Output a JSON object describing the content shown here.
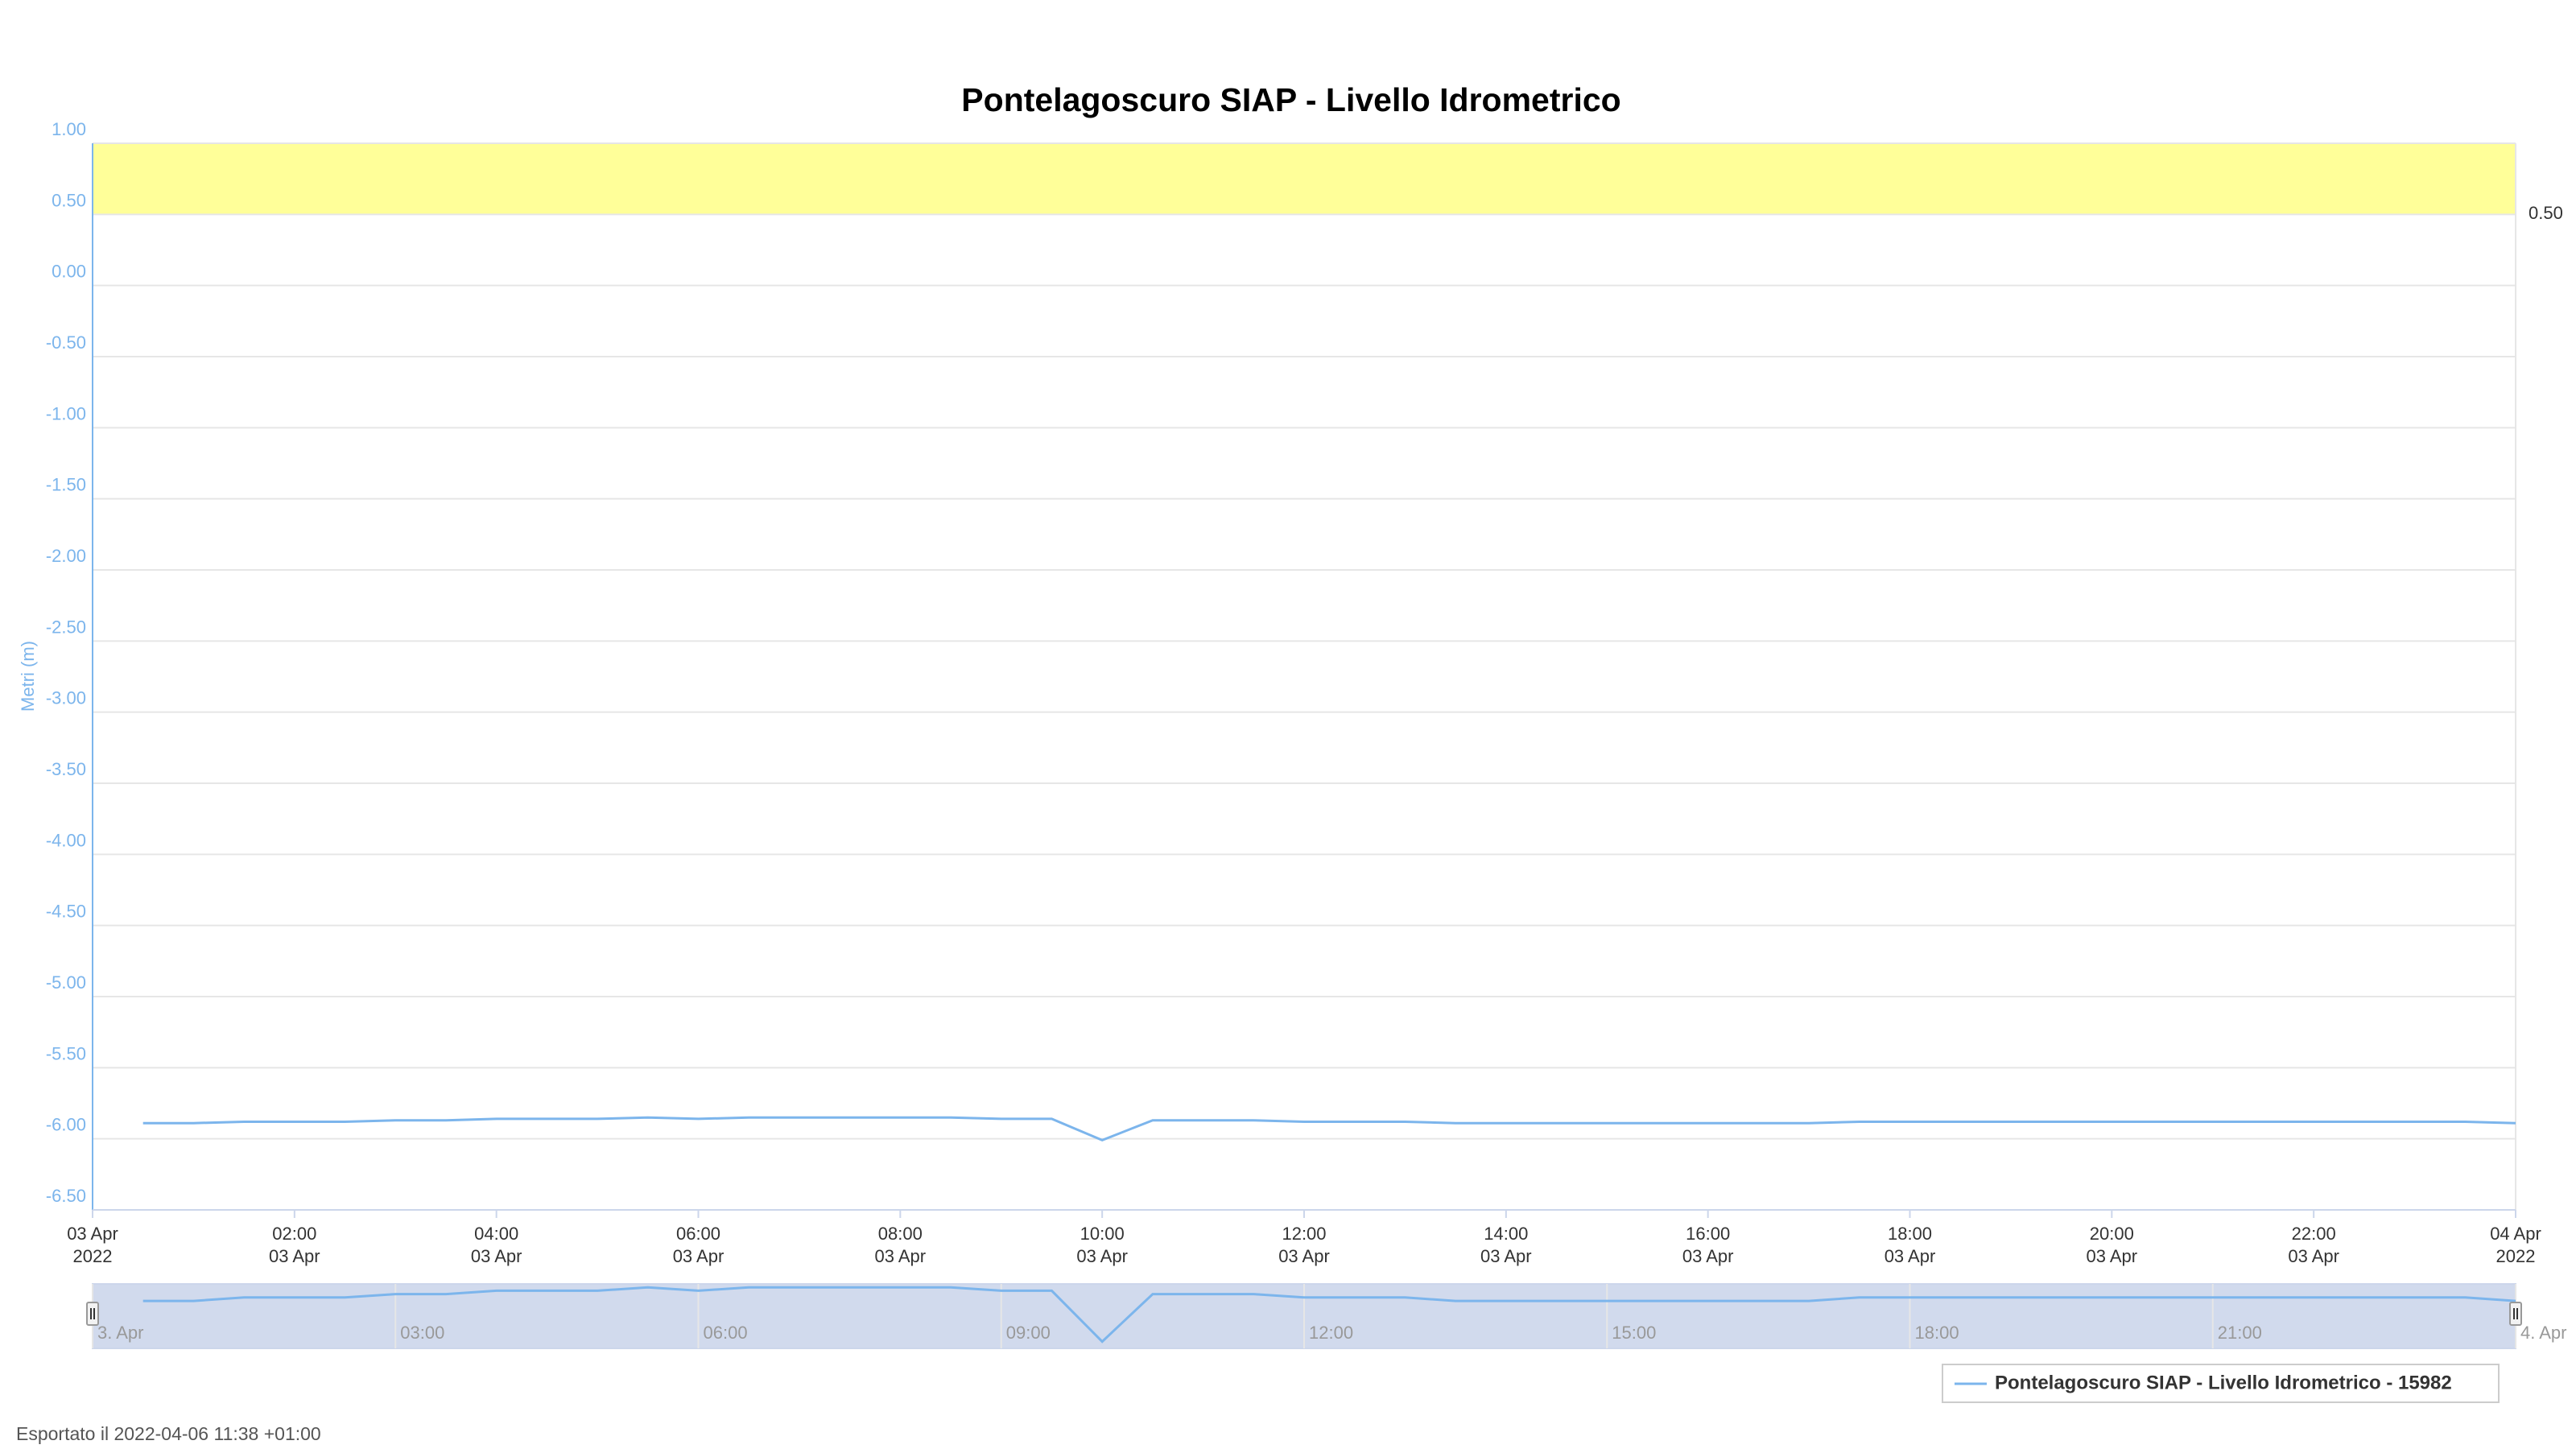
{
  "chart_data": {
    "type": "line",
    "title": "Pontelagoscuro SIAP - Livello Idrometrico",
    "y_label": "Metri (m)",
    "x": [
      "2022-04-03T00:30",
      "2022-04-03T01:00",
      "2022-04-03T01:30",
      "2022-04-03T02:00",
      "2022-04-03T02:30",
      "2022-04-03T03:00",
      "2022-04-03T03:30",
      "2022-04-03T04:00",
      "2022-04-03T04:30",
      "2022-04-03T05:00",
      "2022-04-03T05:30",
      "2022-04-03T06:00",
      "2022-04-03T06:30",
      "2022-04-03T07:00",
      "2022-04-03T07:30",
      "2022-04-03T08:00",
      "2022-04-03T08:30",
      "2022-04-03T09:00",
      "2022-04-03T09:30",
      "2022-04-03T10:00",
      "2022-04-03T10:30",
      "2022-04-03T11:00",
      "2022-04-03T11:30",
      "2022-04-03T12:00",
      "2022-04-03T12:30",
      "2022-04-03T13:00",
      "2022-04-03T13:30",
      "2022-04-03T14:00",
      "2022-04-03T14:30",
      "2022-04-03T15:00",
      "2022-04-03T15:30",
      "2022-04-03T16:00",
      "2022-04-03T16:30",
      "2022-04-03T17:00",
      "2022-04-03T17:30",
      "2022-04-03T18:00",
      "2022-04-03T18:30",
      "2022-04-03T19:00",
      "2022-04-03T19:30",
      "2022-04-03T20:00",
      "2022-04-03T20:30",
      "2022-04-03T21:00",
      "2022-04-03T21:30",
      "2022-04-03T22:00",
      "2022-04-03T22:30",
      "2022-04-03T23:00",
      "2022-04-03T23:30",
      "2022-04-04T00:00"
    ],
    "series": [
      {
        "name": "Pontelagoscuro SIAP - Livello Idrometrico - 15982",
        "color": "#7cb5ec",
        "values": [
          -5.89,
          -5.89,
          -5.88,
          -5.88,
          -5.88,
          -5.87,
          -5.87,
          -5.86,
          -5.86,
          -5.86,
          -5.85,
          -5.86,
          -5.85,
          -5.85,
          -5.85,
          -5.85,
          -5.85,
          -5.86,
          -5.86,
          -6.01,
          -5.87,
          -5.87,
          -5.87,
          -5.88,
          -5.88,
          -5.88,
          -5.89,
          -5.89,
          -5.89,
          -5.89,
          -5.89,
          -5.89,
          -5.89,
          -5.89,
          -5.88,
          -5.88,
          -5.88,
          -5.88,
          -5.88,
          -5.88,
          -5.88,
          -5.88,
          -5.88,
          -5.88,
          -5.88,
          -5.88,
          -5.88,
          -5.89
        ]
      }
    ],
    "xlim": [
      "2022-04-03T00:00",
      "2022-04-04T00:00"
    ],
    "xticks": [
      {
        "value": "2022-04-03T00:00",
        "label": [
          "03 Apr",
          "2022"
        ]
      },
      {
        "value": "2022-04-03T02:00",
        "label": [
          "02:00",
          "03 Apr"
        ]
      },
      {
        "value": "2022-04-03T04:00",
        "label": [
          "04:00",
          "03 Apr"
        ]
      },
      {
        "value": "2022-04-03T06:00",
        "label": [
          "06:00",
          "03 Apr"
        ]
      },
      {
        "value": "2022-04-03T08:00",
        "label": [
          "08:00",
          "03 Apr"
        ]
      },
      {
        "value": "2022-04-03T10:00",
        "label": [
          "10:00",
          "03 Apr"
        ]
      },
      {
        "value": "2022-04-03T12:00",
        "label": [
          "12:00",
          "03 Apr"
        ]
      },
      {
        "value": "2022-04-03T14:00",
        "label": [
          "14:00",
          "03 Apr"
        ]
      },
      {
        "value": "2022-04-03T16:00",
        "label": [
          "16:00",
          "03 Apr"
        ]
      },
      {
        "value": "2022-04-03T18:00",
        "label": [
          "18:00",
          "03 Apr"
        ]
      },
      {
        "value": "2022-04-03T20:00",
        "label": [
          "20:00",
          "03 Apr"
        ]
      },
      {
        "value": "2022-04-03T22:00",
        "label": [
          "22:00",
          "03 Apr"
        ]
      },
      {
        "value": "2022-04-04T00:00",
        "label": [
          "04 Apr",
          "2022"
        ]
      }
    ],
    "ylim": [
      -6.5,
      1.0
    ],
    "yticks": [
      {
        "value": 1.0,
        "label": "1.00"
      },
      {
        "value": 0.5,
        "label": "0.50"
      },
      {
        "value": 0,
        "label": "0.00"
      },
      {
        "value": -0.5,
        "label": "-0.50"
      },
      {
        "value": -1.0,
        "label": "-1.00"
      },
      {
        "value": -1.5,
        "label": "-1.50"
      },
      {
        "value": -2.0,
        "label": "-2.00"
      },
      {
        "value": -2.5,
        "label": "-2.50"
      },
      {
        "value": -3.0,
        "label": "-3.00"
      },
      {
        "value": -3.5,
        "label": "-3.50"
      },
      {
        "value": -4.0,
        "label": "-4.00"
      },
      {
        "value": -4.5,
        "label": "-4.50"
      },
      {
        "value": -5.0,
        "label": "-5.00"
      },
      {
        "value": -5.5,
        "label": "-5.50"
      },
      {
        "value": -6.0,
        "label": "-6.00"
      },
      {
        "value": -6.5,
        "label": "-6.50"
      }
    ],
    "grid": true,
    "plot_bands": [
      {
        "from": 0.5,
        "to": 1.0,
        "color": "#ffff99",
        "label": "0.50"
      }
    ],
    "navigator": {
      "ylim": [
        -6.03,
        -5.84
      ],
      "xticks": [
        {
          "value": "2022-04-03T00:00",
          "label": "3. Apr"
        },
        {
          "value": "2022-04-03T03:00",
          "label": "03:00"
        },
        {
          "value": "2022-04-03T06:00",
          "label": "06:00"
        },
        {
          "value": "2022-04-03T09:00",
          "label": "09:00"
        },
        {
          "value": "2022-04-03T12:00",
          "label": "12:00"
        },
        {
          "value": "2022-04-03T15:00",
          "label": "15:00"
        },
        {
          "value": "2022-04-03T18:00",
          "label": "18:00"
        },
        {
          "value": "2022-04-03T21:00",
          "label": "21:00"
        },
        {
          "value": "2022-04-04T00:00",
          "label": "4. Apr"
        }
      ]
    },
    "legend": "bottom-right",
    "footer": "Esportato il 2022-04-06 11:38 +01:00"
  }
}
